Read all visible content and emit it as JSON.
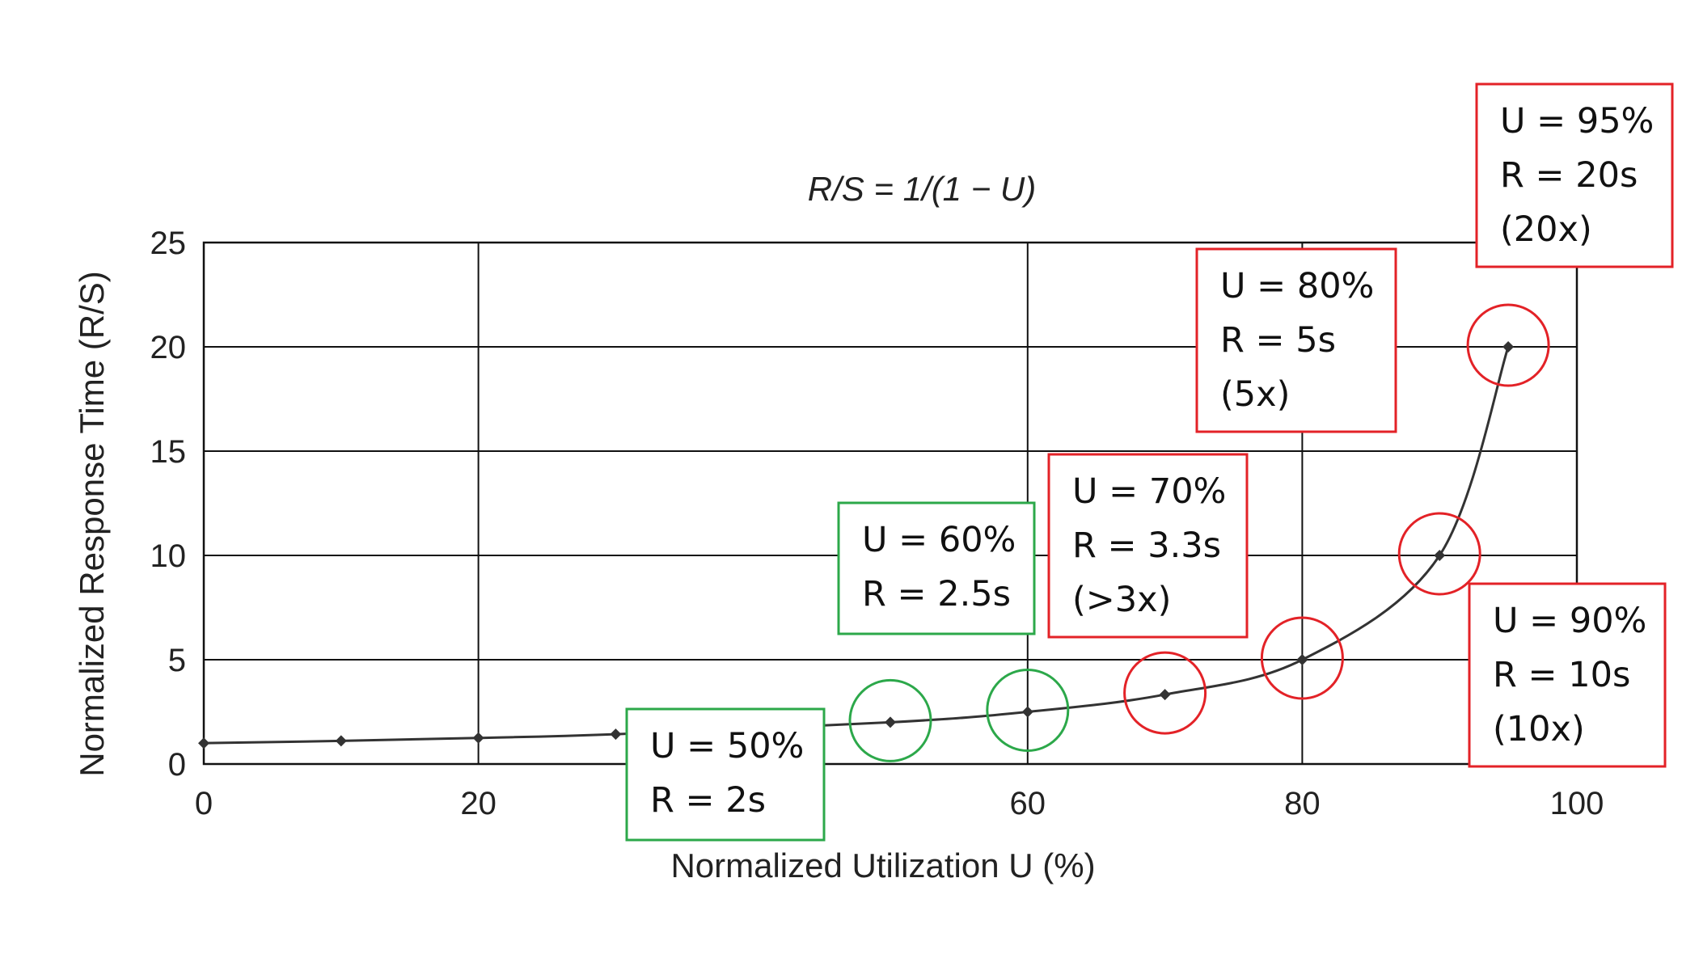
{
  "chart_data": {
    "type": "line",
    "title": "R/S = 1/(1 − U)",
    "xlabel": "Normalized Utilization U (%)",
    "ylabel": "Normalized Response Time (R/S)",
    "xlim": [
      0,
      100
    ],
    "ylim": [
      0,
      25
    ],
    "xticks": [
      "0",
      "20",
      "60",
      "80",
      "100"
    ],
    "xtick_values": [
      0,
      20,
      60,
      80,
      100
    ],
    "yticks": [
      "0",
      "5",
      "10",
      "15",
      "20",
      "25"
    ],
    "ytick_values": [
      0,
      5,
      10,
      15,
      20,
      25
    ],
    "grid": true,
    "series": [
      {
        "name": "R/S",
        "x": [
          0,
          10,
          20,
          30,
          50,
          60,
          70,
          80,
          90,
          95
        ],
        "y": [
          1,
          1.11,
          1.25,
          1.43,
          2,
          2.5,
          3.33,
          5,
          10,
          20
        ]
      }
    ],
    "highlight_colors": {
      "green": "#2ca84a",
      "red": "#e32227"
    },
    "annotations": [
      {
        "x": 50,
        "y": 2,
        "color": "green",
        "lines": [
          "U = 50%",
          "R = 2s"
        ]
      },
      {
        "x": 60,
        "y": 2.5,
        "color": "green",
        "lines": [
          "U = 60%",
          "R = 2.5s"
        ]
      },
      {
        "x": 70,
        "y": 3.33,
        "color": "red",
        "lines": [
          "U = 70%",
          "R = 3.3s",
          "(>3x)"
        ]
      },
      {
        "x": 80,
        "y": 5,
        "color": "red",
        "lines": [
          "U = 80%",
          "R = 5s",
          "(5x)"
        ]
      },
      {
        "x": 90,
        "y": 10,
        "color": "red",
        "lines": [
          "U = 90%",
          "R = 10s",
          "(10x)"
        ]
      },
      {
        "x": 95,
        "y": 20,
        "color": "red",
        "lines": [
          "U = 95%",
          "R = 20s",
          "(20x)"
        ]
      }
    ]
  }
}
